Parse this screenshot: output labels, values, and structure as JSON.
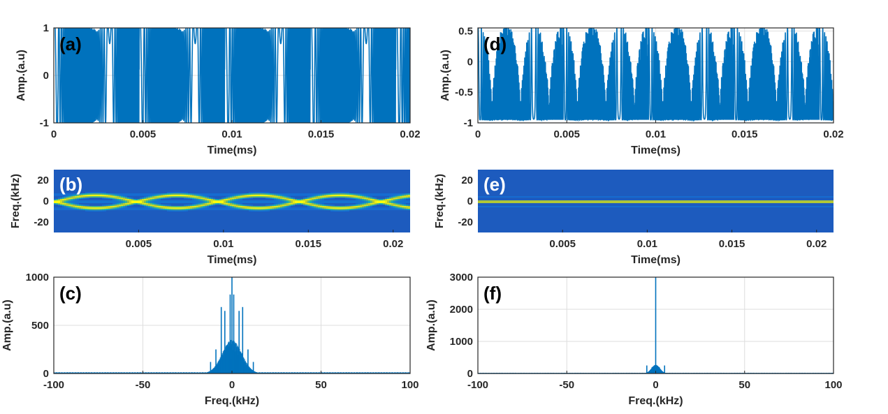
{
  "chart_data": [
    {
      "panel": "(a)",
      "type": "line",
      "xlabel": "Time(ms)",
      "ylabel": "Amp.(a.u)",
      "xlim": [
        0,
        0.02
      ],
      "ylim": [
        -1,
        1
      ],
      "xticks": [
        0,
        0.005,
        0.01,
        0.015,
        0.02
      ],
      "xtick_labels": [
        "0",
        "0.005",
        "0.01",
        "0.015",
        "0.02"
      ],
      "yticks": [
        -1,
        0,
        1
      ],
      "ytick_labels": [
        "-1",
        "0",
        "1"
      ],
      "grid": true,
      "color": "#0072bd",
      "signal": {
        "kind": "multitone_chirp",
        "period": 0.0048,
        "amplitude": 1.0
      }
    },
    {
      "panel": "(b)",
      "type": "heatmap",
      "xlabel": "Time(ms)",
      "ylabel": "Freq.(kHz)",
      "xlim": [
        0,
        0.021
      ],
      "ylim": [
        -30,
        30
      ],
      "xticks": [
        0.005,
        0.01,
        0.015,
        0.02
      ],
      "xtick_labels": [
        "0.005",
        "0.01",
        "0.015",
        "0.02"
      ],
      "yticks": [
        20,
        0,
        -20
      ],
      "ytick_labels": [
        "20",
        "0",
        "-20"
      ],
      "ridge_period": 0.0048,
      "ridge_peak_kHz": 6
    },
    {
      "panel": "(c)",
      "type": "line",
      "xlabel": "Freq.(kHz)",
      "ylabel": "Amp.(a.u)",
      "xlim": [
        -100,
        100
      ],
      "ylim": [
        0,
        1000
      ],
      "xticks": [
        -100,
        -50,
        0,
        50,
        100
      ],
      "xtick_labels": [
        "-100",
        "-50",
        "0",
        "50",
        "100"
      ],
      "yticks": [
        0,
        500,
        1000
      ],
      "ytick_labels": [
        "0",
        "500",
        "1000"
      ],
      "grid": true,
      "peaks": [
        {
          "x": 0,
          "y": 1000
        },
        {
          "x": -1,
          "y": 820
        },
        {
          "x": 1,
          "y": 820
        },
        {
          "x": -6,
          "y": 690
        },
        {
          "x": 6,
          "y": 690
        },
        {
          "x": -4,
          "y": 650
        },
        {
          "x": 4,
          "y": 650
        },
        {
          "x": -9,
          "y": 250
        },
        {
          "x": 9,
          "y": 250
        },
        {
          "x": -12,
          "y": 120
        },
        {
          "x": 12,
          "y": 120
        }
      ]
    },
    {
      "panel": "(d)",
      "type": "line",
      "xlabel": "Time(ms)",
      "ylabel": "Amp.(a.u)",
      "xlim": [
        0,
        0.02
      ],
      "ylim": [
        -1,
        0.55
      ],
      "xticks": [
        0,
        0.005,
        0.01,
        0.015,
        0.02
      ],
      "xtick_labels": [
        "0",
        "0.005",
        "0.01",
        "0.015",
        "0.02"
      ],
      "yticks": [
        -1,
        -0.5,
        0,
        0.5
      ],
      "ytick_labels": [
        "-1",
        "-0.5",
        "0",
        "0.5"
      ],
      "grid": true,
      "color": "#0072bd",
      "signal": {
        "kind": "pulsed_multitone",
        "period": 0.0048,
        "amplitude": 1.0
      }
    },
    {
      "panel": "(e)",
      "type": "heatmap",
      "xlabel": "Time(ms)",
      "ylabel": "Freq.(kHz)",
      "xlim": [
        0,
        0.021
      ],
      "ylim": [
        -30,
        30
      ],
      "xticks": [
        0.005,
        0.01,
        0.015,
        0.02
      ],
      "xtick_labels": [
        "0.005",
        "0.01",
        "0.015",
        "0.02"
      ],
      "yticks": [
        20,
        0,
        -20
      ],
      "ytick_labels": [
        "20",
        "0",
        "-20"
      ],
      "ridge_peak_kHz": 0
    },
    {
      "panel": "(f)",
      "type": "line",
      "xlabel": "Freq.(kHz)",
      "ylabel": "Amp.(a.u)",
      "xlim": [
        -100,
        100
      ],
      "ylim": [
        0,
        3000
      ],
      "xticks": [
        -100,
        -50,
        0,
        50,
        100
      ],
      "xtick_labels": [
        "-100",
        "-50",
        "0",
        "50",
        "100"
      ],
      "yticks": [
        0,
        1000,
        2000,
        3000
      ],
      "ytick_labels": [
        "0",
        "1000",
        "2000",
        "3000"
      ],
      "grid": true,
      "peaks": [
        {
          "x": 0,
          "y": 3000
        },
        {
          "x": -5,
          "y": 250
        },
        {
          "x": 5,
          "y": 250
        },
        {
          "x": -2,
          "y": 200
        },
        {
          "x": 2,
          "y": 200
        }
      ]
    }
  ]
}
